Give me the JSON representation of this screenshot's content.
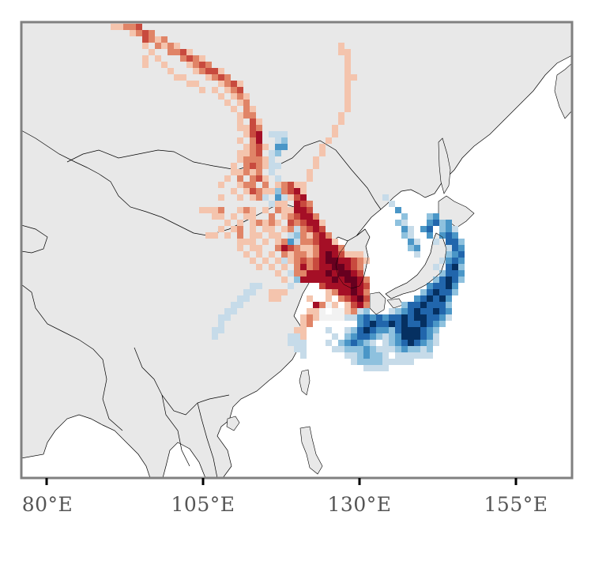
{
  "map": {
    "extent_lon": [
      75,
      163
    ],
    "extent_lat": [
      15,
      58
    ],
    "background_ocean": "#ffffff",
    "land_color": "#e8e8e8",
    "frame_color": "#808080",
    "x_ticks": [
      {
        "lon": 80,
        "label": "80°E"
      },
      {
        "lon": 105,
        "label": "105°E"
      },
      {
        "lon": 130,
        "label": "130°E"
      },
      {
        "lon": 155,
        "label": "155°E"
      }
    ],
    "colormap": "RdBu_r",
    "colors": {
      "positive_strong": "#67001f",
      "positive_weak": "#f4c4ad",
      "negative_strong": "#053061",
      "negative_weak": "#c6dbe9"
    }
  },
  "labels": {
    "x80": "80°E",
    "x105": "105°E",
    "x130": "130°E",
    "x155": "155°E"
  }
}
